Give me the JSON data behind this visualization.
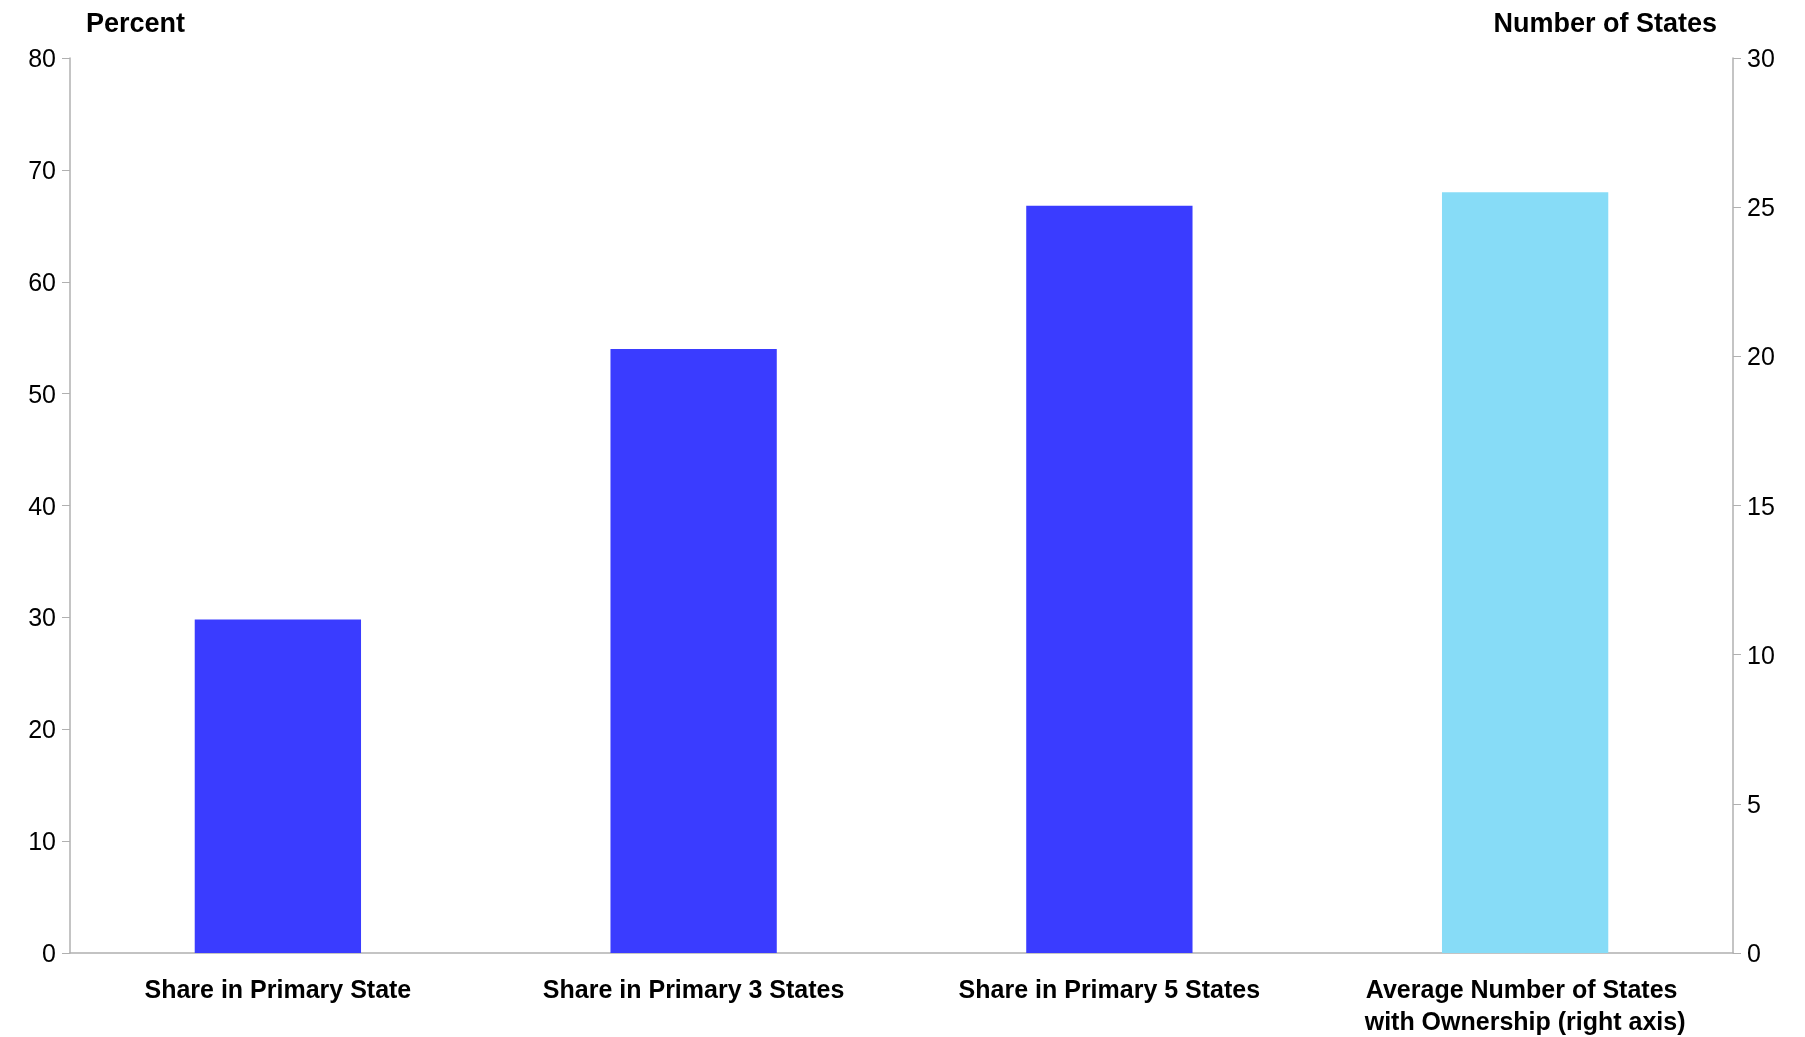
{
  "chart_data": {
    "type": "bar",
    "ylabel": "Percent",
    "y2label": "Number of States",
    "categories": [
      "Share in Primary State",
      "Share in Primary 3 States",
      "Share in Primary 5 States",
      "Average Number of States with Ownership (right axis)"
    ],
    "series": [
      {
        "color": "#3a3cff",
        "values": [
          29.8,
          54.0,
          66.8,
          null
        ]
      },
      {
        "color": "#87dcf7",
        "axis": "y2",
        "values": [
          null,
          null,
          null,
          25.5
        ]
      }
    ],
    "ylim": [
      0,
      80
    ],
    "yticks": [
      0,
      10,
      20,
      30,
      40,
      50,
      60,
      70,
      80
    ],
    "y2lim": [
      0,
      30
    ],
    "y2ticks": [
      0,
      5,
      10,
      15,
      20,
      25,
      30
    ],
    "grid": false
  }
}
